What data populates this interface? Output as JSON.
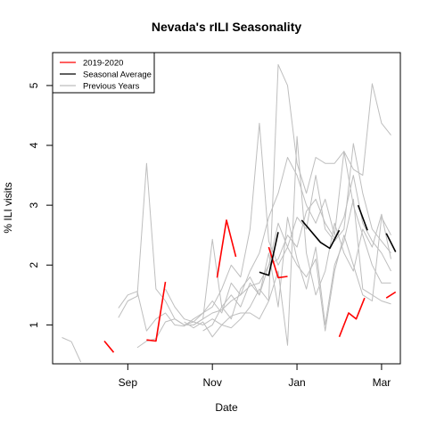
{
  "chart_data": {
    "type": "line",
    "title": "Nevada's rILI Seasonality",
    "xlabel": "Date",
    "ylabel": "% ILI visits",
    "x_ticks": [
      {
        "label": "Sep",
        "week": 8
      },
      {
        "label": "Nov",
        "week": 17
      },
      {
        "label": "Jan",
        "week": 26
      },
      {
        "label": "Mar",
        "week": 35
      }
    ],
    "y_ticks": [
      1,
      2,
      3,
      4,
      5
    ],
    "xlim": [
      0,
      37
    ],
    "ylim": [
      0.35,
      5.55
    ],
    "legend": {
      "position": "top-left",
      "items": [
        {
          "label": "2019-2020",
          "color": "#ff0000"
        },
        {
          "label": "Seasonal Average",
          "color": "#000000"
        },
        {
          "label": "Previous Years",
          "color": "#bebebe"
        }
      ]
    },
    "series": [
      {
        "name": "2019-2020",
        "color": "#ff0000",
        "width": 1.6,
        "points": [
          [
            5.5,
            0.73
          ],
          [
            6.5,
            0.54
          ],
          null,
          [
            10,
            0.75
          ],
          [
            11,
            0.73
          ],
          [
            12,
            1.72
          ],
          null,
          [
            17.5,
            1.79
          ],
          [
            18.5,
            2.75
          ],
          [
            19.5,
            2.14
          ],
          null,
          [
            23,
            2.3
          ],
          [
            24,
            1.79
          ],
          [
            25,
            1.81
          ],
          null,
          [
            30.5,
            0.8
          ],
          [
            31.5,
            1.2
          ],
          [
            32.3,
            1.1
          ],
          [
            33.2,
            1.45
          ],
          null,
          [
            35.5,
            1.45
          ],
          [
            36.5,
            1.55
          ]
        ]
      },
      {
        "name": "Seasonal Average",
        "color": "#000000",
        "width": 1.6,
        "points": [
          [
            22,
            1.88
          ],
          [
            23,
            1.83
          ],
          [
            24,
            2.55
          ],
          null,
          [
            26.5,
            2.75
          ],
          [
            28.5,
            2.38
          ],
          [
            29.5,
            2.28
          ],
          [
            30.5,
            2.58
          ],
          null,
          [
            32.5,
            3
          ],
          [
            33.5,
            2.58
          ],
          null,
          [
            35.5,
            2.53
          ],
          [
            36.5,
            2.22
          ]
        ]
      },
      {
        "name": "Previous Years 1",
        "color": "#bebebe",
        "width": 1,
        "points": [
          [
            1,
            0.79
          ],
          [
            2,
            0.72
          ],
          [
            3,
            0.38
          ],
          null,
          [
            7,
            1.12
          ],
          [
            8,
            1.4
          ],
          [
            9,
            1.48
          ],
          [
            10,
            3.7
          ],
          [
            11,
            1.6
          ],
          [
            12,
            1.4
          ],
          [
            13,
            1.1
          ],
          [
            14,
            1.0
          ],
          [
            15,
            1.05
          ],
          [
            16,
            1.2
          ],
          [
            17,
            1.3
          ],
          [
            18,
            1.6
          ],
          [
            19,
            2.0
          ],
          [
            20,
            1.8
          ],
          [
            21,
            2.6
          ],
          [
            22,
            4.37
          ],
          [
            23,
            2.4
          ],
          [
            24,
            2.0
          ],
          [
            25,
            2.3
          ],
          [
            26,
            2.8
          ],
          [
            27,
            2.6
          ],
          [
            28,
            3.5
          ],
          [
            29,
            2.6
          ],
          [
            30,
            2.4
          ],
          [
            31,
            2.6
          ],
          [
            32,
            4.03
          ],
          [
            33,
            3.2
          ],
          [
            34,
            2.6
          ],
          [
            35,
            2.4
          ],
          [
            36,
            2.2
          ]
        ]
      },
      {
        "name": "Previous Years 2",
        "color": "#bebebe",
        "width": 1,
        "points": [
          [
            7,
            1.28
          ],
          [
            8,
            1.5
          ],
          [
            9,
            1.56
          ],
          [
            10,
            0.9
          ],
          [
            11,
            1.1
          ],
          [
            12,
            1.2
          ],
          [
            13,
            1.0
          ],
          [
            14,
            0.98
          ],
          [
            15,
            1.1
          ],
          [
            16,
            1.2
          ],
          [
            17,
            1.4
          ],
          [
            18,
            1.2
          ],
          [
            19,
            1.7
          ],
          [
            20,
            1.5
          ],
          [
            21,
            1.9
          ],
          [
            22,
            2.2
          ],
          [
            23,
            2.8
          ],
          [
            24,
            3.2
          ],
          [
            25,
            3.8
          ],
          [
            26,
            3.5
          ],
          [
            27,
            3.0
          ],
          [
            28,
            2.7
          ],
          [
            29,
            3.1
          ],
          [
            30,
            2.5
          ],
          [
            31,
            3.9
          ],
          [
            32,
            3.6
          ],
          [
            33,
            3.5
          ],
          [
            34,
            5.03
          ],
          [
            35,
            4.37
          ],
          [
            36,
            4.17
          ]
        ]
      },
      {
        "name": "Previous Years 3",
        "color": "#bebebe",
        "width": 1,
        "points": [
          [
            9,
            0.62
          ],
          [
            10,
            0.73
          ],
          [
            11,
            0.77
          ],
          [
            12,
            1.05
          ],
          [
            13,
            1.1
          ],
          [
            14,
            1.0
          ],
          [
            15,
            1.0
          ],
          [
            16,
            1.1
          ],
          [
            17,
            1.2
          ],
          [
            18,
            1.25
          ],
          [
            19,
            1.4
          ],
          [
            20,
            1.5
          ],
          [
            21,
            1.65
          ],
          [
            22,
            1.7
          ],
          [
            23,
            2.0
          ],
          [
            24,
            2.1
          ],
          [
            25,
            2.5
          ],
          [
            26,
            2.3
          ],
          [
            27,
            2.9
          ],
          [
            28,
            3.1
          ],
          [
            29,
            2.7
          ],
          [
            30,
            2.45
          ],
          [
            31,
            2.8
          ],
          [
            32,
            3.5
          ],
          [
            33,
            2.7
          ],
          [
            34,
            2.4
          ],
          [
            35,
            2.2
          ],
          [
            36,
            1.9
          ]
        ]
      },
      {
        "name": "Previous Years 4",
        "color": "#bebebe",
        "width": 1,
        "points": [
          [
            12,
            1.6
          ],
          [
            13,
            1.3
          ],
          [
            14,
            1.1
          ],
          [
            15,
            1.05
          ],
          [
            16,
            1.0
          ],
          [
            17,
            1.1
          ],
          [
            18,
            1.0
          ],
          [
            19,
            1.15
          ],
          [
            20,
            1.2
          ],
          [
            21,
            1.2
          ],
          [
            22,
            1.1
          ],
          [
            23,
            1.4
          ],
          [
            24,
            5.35
          ],
          [
            25,
            5.0
          ],
          [
            26,
            3.7
          ],
          [
            27,
            3.2
          ],
          [
            28,
            3.8
          ],
          [
            29,
            3.7
          ],
          [
            30,
            3.7
          ],
          [
            31,
            3.9
          ],
          [
            32,
            3.0
          ],
          [
            33,
            2.5
          ],
          [
            34,
            2.0
          ],
          [
            35,
            1.7
          ],
          [
            36,
            1.7
          ]
        ]
      },
      {
        "name": "Previous Years 5",
        "color": "#bebebe",
        "width": 1,
        "points": [
          [
            14,
            1.05
          ],
          [
            15,
            0.95
          ],
          [
            16,
            1.05
          ],
          [
            17,
            0.8
          ],
          [
            18,
            1.0
          ],
          [
            19,
            0.95
          ],
          [
            20,
            1.1
          ],
          [
            21,
            1.3
          ],
          [
            22,
            1.6
          ],
          [
            23,
            1.4
          ],
          [
            24,
            1.9
          ],
          [
            25,
            0.66
          ],
          [
            26,
            4.15
          ],
          [
            27,
            2.2
          ],
          [
            28,
            1.5
          ],
          [
            29,
            1.9
          ],
          [
            30,
            2.7
          ],
          [
            31,
            2.2
          ],
          [
            32,
            1.9
          ],
          [
            33,
            2.6
          ],
          [
            34,
            2.3
          ],
          [
            35,
            2.85
          ],
          [
            36,
            2.1
          ]
        ]
      },
      {
        "name": "Previous Years 6",
        "color": "#bebebe",
        "width": 1,
        "points": [
          [
            15,
            1.0
          ],
          [
            16,
            1.1
          ],
          [
            17,
            2.43
          ],
          [
            18,
            1.3
          ],
          [
            19,
            1.5
          ],
          [
            20,
            1.3
          ],
          [
            21,
            1.7
          ],
          [
            22,
            1.5
          ],
          [
            23,
            2.2
          ],
          [
            24,
            1.3
          ],
          [
            25,
            2.8
          ],
          [
            26,
            2.1
          ],
          [
            27,
            1.6
          ],
          [
            28,
            2.3
          ],
          [
            29,
            1.0
          ],
          [
            30,
            2.0
          ],
          [
            31,
            2.4
          ],
          [
            32,
            3.1
          ],
          [
            33,
            1.6
          ],
          [
            34,
            1.5
          ],
          [
            35,
            1.4
          ],
          [
            36,
            1.35
          ]
        ]
      },
      {
        "name": "Previous Years 7",
        "color": "#bebebe",
        "width": 1,
        "points": [
          [
            16,
            0.9
          ],
          [
            17,
            1.0
          ],
          [
            18,
            1.3
          ],
          [
            19,
            1.1
          ],
          [
            20,
            1.6
          ],
          [
            21,
            1.8
          ],
          [
            22,
            1.5
          ],
          [
            23,
            2.0
          ],
          [
            24,
            2.7
          ],
          [
            25,
            2.3
          ],
          [
            26,
            2.0
          ],
          [
            27,
            1.8
          ],
          [
            28,
            2.1
          ],
          [
            29,
            0.9
          ],
          [
            30,
            1.9
          ],
          [
            31,
            2.5
          ],
          [
            32,
            2.0
          ],
          [
            33,
            1.5
          ],
          [
            34,
            1.4
          ],
          [
            35,
            2.8
          ],
          [
            36,
            2.5
          ]
        ]
      }
    ]
  }
}
